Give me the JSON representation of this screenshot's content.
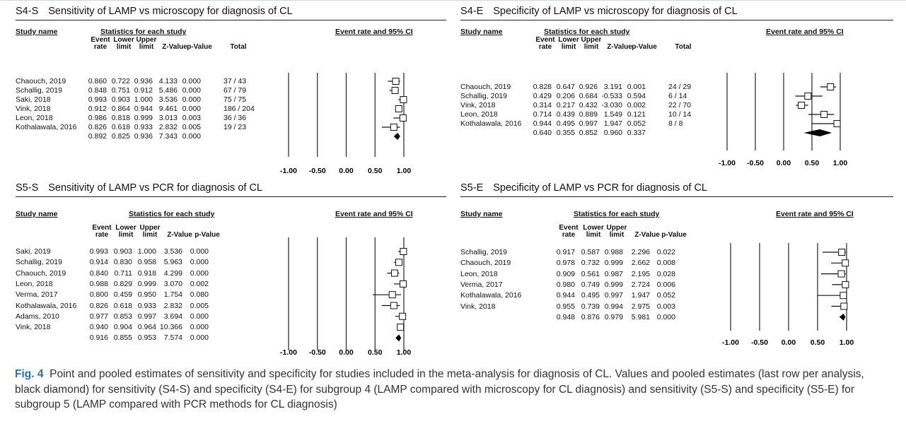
{
  "figure": {
    "caption_label": "Fig. 4",
    "caption_text": "Point and pooled estimates of sensitivity and specificity for studies included in the meta-analysis for diagnosis of CL. Values and pooled estimates (last row per analysis, black diamond) for sensitivity (S4-S) and specificity (S4-E) for subgroup 4 (LAMP compared with microscopy for CL diagnosis) and sensitivity (S5-S) and specificity (S5-E) for subgroup 5 (LAMP compared with PCR methods for CL diagnosis)"
  },
  "common": {
    "study_name": "Study name",
    "stats_header": "Statistics for each study",
    "ci_header": "Event rate and 95% CI",
    "col_event": [
      "Event",
      "rate"
    ],
    "col_lower": [
      "Lower",
      "limit"
    ],
    "col_upper": [
      "Upper",
      "limit"
    ],
    "col_z": "Z-Value",
    "col_p": "p-Value",
    "col_total": "Total",
    "axis_ticks": [
      "-1.00",
      "-0.50",
      "0.00",
      "0.50",
      "1.00"
    ]
  },
  "chart_data": [
    {
      "type": "forest",
      "code": "S4-S",
      "title": "Sensitivity of LAMP vs microscopy for diagnosis of CL",
      "xlim": [
        -1,
        1
      ],
      "rows": [
        {
          "study": "Chaouch, 2019",
          "rate": "0.860",
          "lower": "0.722",
          "upper": "0.936",
          "z": "4.133",
          "p": "0.000",
          "total": "37 / 43"
        },
        {
          "study": "Schallig, 2019",
          "rate": "0.848",
          "lower": "0.751",
          "upper": "0.912",
          "z": "5.486",
          "p": "0.000",
          "total": "67 / 79"
        },
        {
          "study": "Saki, 2018",
          "rate": "0.993",
          "lower": "0.903",
          "upper": "1.000",
          "z": "3.536",
          "p": "0.000",
          "total": "75 / 75"
        },
        {
          "study": "Vink, 2018",
          "rate": "0.912",
          "lower": "0.864",
          "upper": "0.944",
          "z": "9.461",
          "p": "0.000",
          "total": "186 / 204"
        },
        {
          "study": "Leon, 2018",
          "rate": "0.986",
          "lower": "0.818",
          "upper": "0.999",
          "z": "3.013",
          "p": "0.003",
          "total": "36 / 36"
        },
        {
          "study": "Kothalawala, 2016",
          "rate": "0.826",
          "lower": "0.618",
          "upper": "0.933",
          "z": "2.832",
          "p": "0.005",
          "total": "19 / 23"
        }
      ],
      "pooled": {
        "rate": "0.892",
        "lower": "0.825",
        "upper": "0.936",
        "z": "7.343",
        "p": "0.000"
      }
    },
    {
      "type": "forest",
      "code": "S4-E",
      "title": "Specificity of LAMP vs microscopy for diagnosis of CL",
      "xlim": [
        -1,
        1
      ],
      "rows": [
        {
          "study": "Chaouch, 2019",
          "rate": "0.828",
          "lower": "0.647",
          "upper": "0.926",
          "z": "3.191",
          "p": "0.001",
          "total": "24 / 29"
        },
        {
          "study": "Schallig, 2019",
          "rate": "0.429",
          "lower": "0.206",
          "upper": "0.684",
          "z": "-0.533",
          "p": "0.594",
          "total": "6 / 14"
        },
        {
          "study": "Vink, 2018",
          "rate": "0.314",
          "lower": "0.217",
          "upper": "0.432",
          "z": "-3.030",
          "p": "0.002",
          "total": "22 / 70"
        },
        {
          "study": "Leon, 2018",
          "rate": "0.714",
          "lower": "0.439",
          "upper": "0.889",
          "z": "1.549",
          "p": "0.121",
          "total": "10 / 14"
        },
        {
          "study": "Kothalawala, 2016",
          "rate": "0.944",
          "lower": "0.495",
          "upper": "0.997",
          "z": "1.947",
          "p": "0.052",
          "total": "8 / 8"
        }
      ],
      "pooled": {
        "rate": "0.640",
        "lower": "0.355",
        "upper": "0.852",
        "z": "0.960",
        "p": "0.337"
      }
    },
    {
      "type": "forest",
      "code": "S5-S",
      "title": "Sensitivity of LAMP vs PCR for diagnosis of CL",
      "xlim": [
        -1,
        1
      ],
      "rows": [
        {
          "study": "Saki, 2019",
          "rate": "0.993",
          "lower": "0.903",
          "upper": "1.000",
          "z": "3.536",
          "p": "0.000"
        },
        {
          "study": "Schallig, 2019",
          "rate": "0.914",
          "lower": "0.830",
          "upper": "0.958",
          "z": "5.963",
          "p": "0.000"
        },
        {
          "study": "Chaouch, 2019",
          "rate": "0.840",
          "lower": "0.711",
          "upper": "0.918",
          "z": "4.299",
          "p": "0.000"
        },
        {
          "study": "Leon, 2018",
          "rate": "0.988",
          "lower": "0.829",
          "upper": "0.999",
          "z": "3.070",
          "p": "0.002"
        },
        {
          "study": "Verma, 2017",
          "rate": "0.800",
          "lower": "0.459",
          "upper": "0.950",
          "z": "1.754",
          "p": "0.080"
        },
        {
          "study": "Kothalawala, 2016",
          "rate": "0.826",
          "lower": "0.618",
          "upper": "0.933",
          "z": "2.832",
          "p": "0.005"
        },
        {
          "study": "Adams, 2010",
          "rate": "0.977",
          "lower": "0.853",
          "upper": "0.997",
          "z": "3.694",
          "p": "0.000"
        },
        {
          "study": "Vink, 2018",
          "rate": "0.940",
          "lower": "0.904",
          "upper": "0.964",
          "z": "10.366",
          "p": "0.000"
        }
      ],
      "pooled": {
        "rate": "0.916",
        "lower": "0.855",
        "upper": "0.953",
        "z": "7.574",
        "p": "0.000"
      }
    },
    {
      "type": "forest",
      "code": "S5-E",
      "title": "Specificity of LAMP vs PCR for diagnosis of CL",
      "xlim": [
        -1,
        1
      ],
      "rows": [
        {
          "study": "Schallig, 2019",
          "rate": "0.917",
          "lower": "0.587",
          "upper": "0.988",
          "z": "2.296",
          "p": "0.022"
        },
        {
          "study": "Chaouch, 2019",
          "rate": "0.978",
          "lower": "0.732",
          "upper": "0.999",
          "z": "2.662",
          "p": "0.008"
        },
        {
          "study": "Leon, 2018",
          "rate": "0.909",
          "lower": "0.561",
          "upper": "0.987",
          "z": "2.195",
          "p": "0.028"
        },
        {
          "study": "Verma, 2017",
          "rate": "0.980",
          "lower": "0.749",
          "upper": "0.999",
          "z": "2.724",
          "p": "0.006"
        },
        {
          "study": "Kothalawala, 2016",
          "rate": "0.944",
          "lower": "0.495",
          "upper": "0.997",
          "z": "1.947",
          "p": "0.052"
        },
        {
          "study": "Vink, 2018",
          "rate": "0.955",
          "lower": "0.739",
          "upper": "0.994",
          "z": "2.975",
          "p": "0.003"
        }
      ],
      "pooled": {
        "rate": "0.948",
        "lower": "0.876",
        "upper": "0.979",
        "z": "5.981",
        "p": "0.000"
      }
    }
  ]
}
